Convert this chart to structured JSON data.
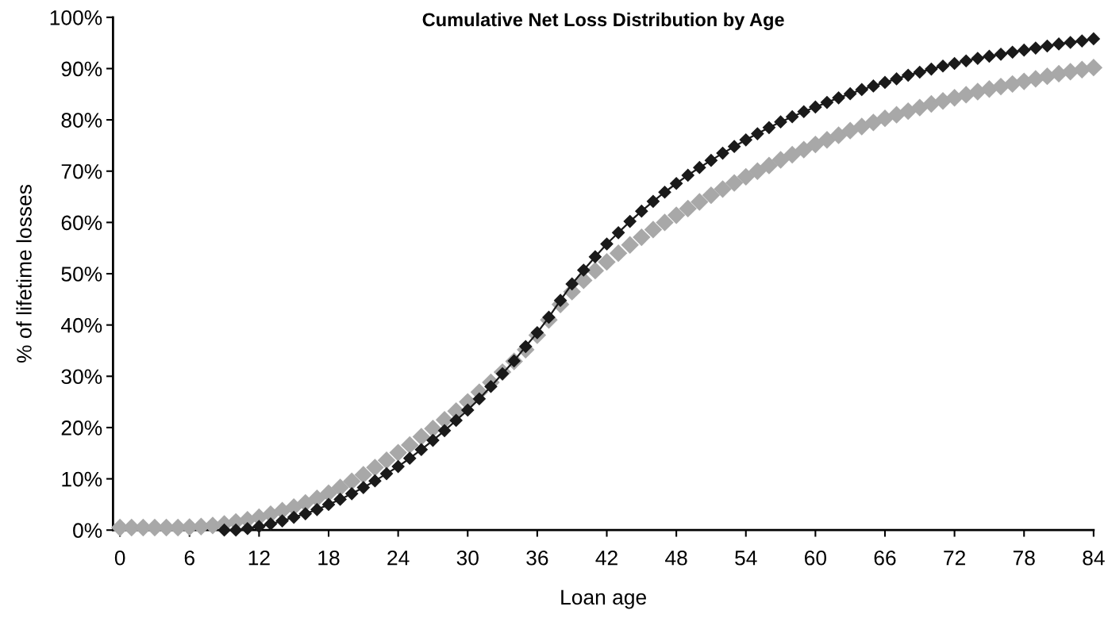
{
  "chart_data": {
    "type": "line",
    "title": "Cumulative Net Loss Distribution by Age",
    "xlabel": "Loan age",
    "ylabel": "% of lifetime losses",
    "xlim": [
      -0.6,
      84
    ],
    "xticks": [
      0,
      6,
      12,
      18,
      24,
      30,
      36,
      42,
      48,
      54,
      60,
      66,
      72,
      78,
      84
    ],
    "ylim": [
      0,
      100
    ],
    "yticks": [
      {
        "value": 0,
        "label": "0%"
      },
      {
        "value": 10,
        "label": "10%"
      },
      {
        "value": 20,
        "label": "20%"
      },
      {
        "value": 30,
        "label": "30%"
      },
      {
        "value": 40,
        "label": "40%"
      },
      {
        "value": 50,
        "label": "50%"
      },
      {
        "value": 60,
        "label": "60%"
      },
      {
        "value": 70,
        "label": "70%"
      },
      {
        "value": 80,
        "label": "80%"
      },
      {
        "value": 90,
        "label": "90%"
      },
      {
        "value": 100,
        "label": "100%"
      }
    ],
    "grid": false,
    "legend": false,
    "marker": "diamond",
    "line_style": "solid",
    "series": [
      {
        "type": "scatter",
        "color": "#a8a8a8",
        "x": [
          0,
          1,
          2,
          3,
          4,
          5,
          6,
          7,
          8,
          9,
          10,
          11,
          12,
          13,
          14,
          15,
          16,
          17,
          18,
          19,
          20,
          21,
          22,
          23,
          24,
          25,
          26,
          27,
          28,
          29,
          30,
          31,
          32,
          33,
          34,
          35,
          36,
          37,
          38,
          39,
          40,
          41,
          42,
          43,
          44,
          45,
          46,
          47,
          48,
          49,
          50,
          51,
          52,
          53,
          54,
          55,
          56,
          57,
          58,
          59,
          60,
          61,
          62,
          63,
          64,
          65,
          66,
          67,
          68,
          69,
          70,
          71,
          72,
          73,
          74,
          75,
          76,
          77,
          78,
          79,
          80,
          81,
          82,
          83,
          84
        ],
        "values": [
          0.5,
          0.5,
          0.5,
          0.5,
          0.5,
          0.5,
          0.6,
          0.7,
          0.9,
          1.2,
          1.6,
          2.0,
          2.5,
          3.1,
          3.8,
          4.5,
          5.3,
          6.2,
          7.2,
          8.3,
          9.5,
          10.8,
          12.2,
          13.6,
          15.1,
          16.6,
          18.2,
          19.8,
          21.5,
          23.2,
          25,
          26.9,
          28.8,
          30.8,
          32.9,
          35.2,
          38,
          41,
          44,
          46.5,
          48.7,
          50.6,
          52.3,
          54,
          55.6,
          57.1,
          58.6,
          60,
          61.4,
          62.7,
          64,
          65.3,
          66.5,
          67.7,
          68.9,
          70,
          71.1,
          72.2,
          73.2,
          74.2,
          75.2,
          76.1,
          77,
          77.9,
          78.7,
          79.5,
          80.3,
          81,
          81.7,
          82.4,
          83.1,
          83.7,
          84.3,
          84.9,
          85.5,
          86,
          86.5,
          87,
          87.5,
          88,
          88.5,
          89,
          89.4,
          89.8,
          90.2
        ]
      },
      {
        "color": "#1a1a1a",
        "x": [
          9,
          10,
          11,
          12,
          13,
          14,
          15,
          16,
          17,
          18,
          19,
          20,
          21,
          22,
          23,
          24,
          25,
          26,
          27,
          28,
          29,
          30,
          31,
          32,
          33,
          34,
          35,
          36,
          37,
          38,
          39,
          40,
          41,
          42,
          43,
          44,
          45,
          46,
          47,
          48,
          49,
          50,
          51,
          52,
          53,
          54,
          55,
          56,
          57,
          58,
          59,
          60,
          61,
          62,
          63,
          64,
          65,
          66,
          67,
          68,
          69,
          70,
          71,
          72,
          73,
          74,
          75,
          76,
          77,
          78,
          79,
          80,
          81,
          82,
          83,
          84
        ],
        "values": [
          0,
          0,
          0.3,
          0.7,
          1.2,
          1.8,
          2.5,
          3.2,
          4.0,
          5.0,
          6.0,
          7.1,
          8.3,
          9.6,
          11.0,
          12.4,
          14.0,
          15.7,
          17.5,
          19.4,
          21.4,
          23.4,
          25.6,
          28,
          30.5,
          33,
          35.8,
          38.5,
          41.5,
          44.8,
          48,
          50.7,
          53.3,
          55.8,
          58,
          60.2,
          62.2,
          64.1,
          65.9,
          67.6,
          69.2,
          70.7,
          72.1,
          73.5,
          74.8,
          76.1,
          77.3,
          78.5,
          79.6,
          80.6,
          81.6,
          82.5,
          83.4,
          84.3,
          85.1,
          85.9,
          86.6,
          87.3,
          88,
          88.7,
          89.3,
          89.9,
          90.5,
          91,
          91.5,
          92,
          92.4,
          92.8,
          93.2,
          93.6,
          94,
          94.4,
          94.8,
          95.1,
          95.4,
          95.8
        ]
      }
    ]
  }
}
